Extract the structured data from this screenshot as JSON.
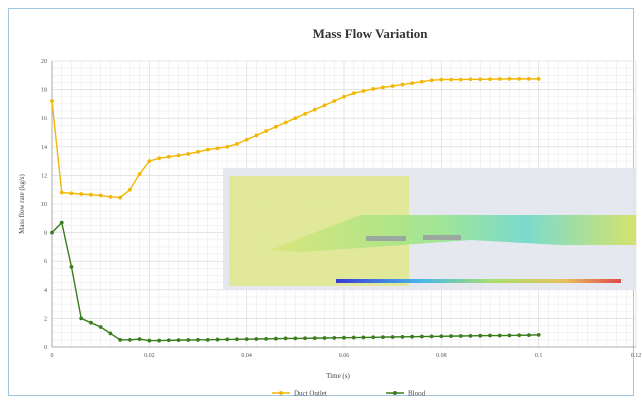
{
  "chart_data": {
    "type": "line",
    "title": "Mass Flow Variation",
    "xlabel": "Time (s)",
    "ylabel": "Mass flow rate (kg/s)",
    "xlim": [
      0,
      0.12
    ],
    "ylim": [
      0,
      20
    ],
    "x_ticks": [
      "0",
      "0.02",
      "0.04",
      "0.06",
      "0.08",
      "0.1",
      "0.12"
    ],
    "y_ticks": [
      "0",
      "2",
      "4",
      "6",
      "8",
      "10",
      "12",
      "14",
      "16",
      "18",
      "20"
    ],
    "grid": true,
    "legend_position": "bottom-center",
    "series": [
      {
        "name": "Duct Outlet",
        "color": "#f2b705",
        "x": [
          0,
          0.002,
          0.004,
          0.006,
          0.008,
          0.01,
          0.012,
          0.014,
          0.016,
          0.018,
          0.02,
          0.022,
          0.024,
          0.026,
          0.028,
          0.03,
          0.032,
          0.034,
          0.036,
          0.038,
          0.04,
          0.042,
          0.044,
          0.046,
          0.048,
          0.05,
          0.052,
          0.054,
          0.056,
          0.058,
          0.06,
          0.062,
          0.064,
          0.066,
          0.068,
          0.07,
          0.072,
          0.074,
          0.076,
          0.078,
          0.08,
          0.082,
          0.084,
          0.086,
          0.088,
          0.09,
          0.092,
          0.094,
          0.096,
          0.098,
          0.1
        ],
        "values": [
          17.2,
          10.8,
          10.75,
          10.7,
          10.65,
          10.6,
          10.5,
          10.45,
          11.0,
          12.1,
          13.0,
          13.2,
          13.3,
          13.4,
          13.5,
          13.65,
          13.8,
          13.9,
          14.0,
          14.2,
          14.5,
          14.8,
          15.1,
          15.4,
          15.7,
          16.0,
          16.3,
          16.6,
          16.9,
          17.2,
          17.5,
          17.75,
          17.9,
          18.05,
          18.15,
          18.25,
          18.35,
          18.45,
          18.55,
          18.65,
          18.7,
          18.7,
          18.7,
          18.72,
          18.72,
          18.73,
          18.74,
          18.75,
          18.75,
          18.75,
          18.75
        ]
      },
      {
        "name": "Blood",
        "color": "#3a7d1f",
        "x": [
          0,
          0.002,
          0.004,
          0.006,
          0.008,
          0.01,
          0.012,
          0.014,
          0.016,
          0.018,
          0.02,
          0.022,
          0.024,
          0.026,
          0.028,
          0.03,
          0.032,
          0.034,
          0.036,
          0.038,
          0.04,
          0.042,
          0.044,
          0.046,
          0.048,
          0.05,
          0.052,
          0.054,
          0.056,
          0.058,
          0.06,
          0.062,
          0.064,
          0.066,
          0.068,
          0.07,
          0.072,
          0.074,
          0.076,
          0.078,
          0.08,
          0.082,
          0.084,
          0.086,
          0.088,
          0.09,
          0.092,
          0.094,
          0.096,
          0.098,
          0.1
        ],
        "values": [
          8.0,
          8.7,
          5.6,
          2.0,
          1.7,
          1.4,
          0.95,
          0.5,
          0.5,
          0.55,
          0.45,
          0.45,
          0.47,
          0.48,
          0.49,
          0.5,
          0.5,
          0.52,
          0.53,
          0.54,
          0.55,
          0.56,
          0.57,
          0.58,
          0.6,
          0.6,
          0.61,
          0.62,
          0.63,
          0.64,
          0.65,
          0.66,
          0.67,
          0.68,
          0.69,
          0.7,
          0.71,
          0.72,
          0.73,
          0.74,
          0.75,
          0.76,
          0.77,
          0.78,
          0.79,
          0.8,
          0.8,
          0.81,
          0.82,
          0.83,
          0.85
        ]
      }
    ]
  },
  "overlay": {
    "description_icon": "cfd-flow-contour-image"
  }
}
